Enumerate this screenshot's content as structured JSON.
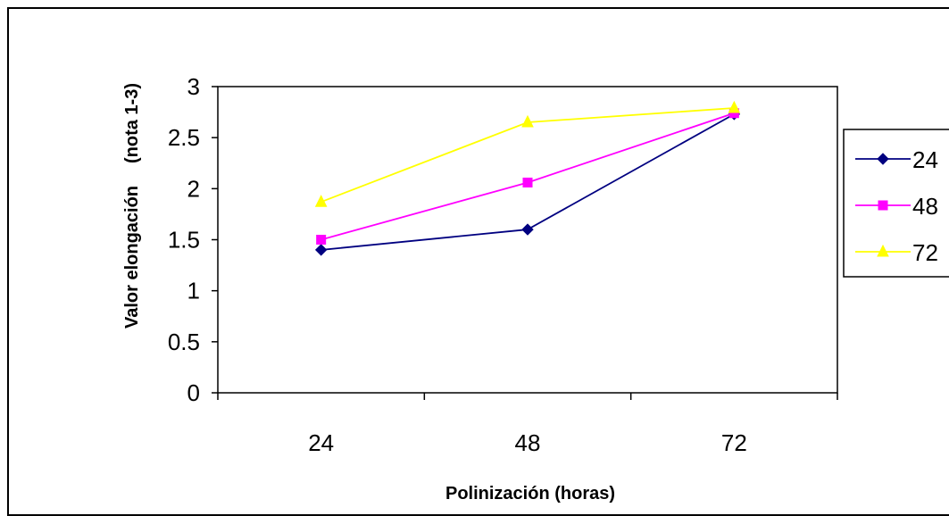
{
  "chart_data": {
    "type": "line",
    "categories": [
      "24",
      "48",
      "72"
    ],
    "series": [
      {
        "name": "24",
        "values": [
          1.4,
          1.6,
          2.73
        ],
        "color": "#000080",
        "marker": "diamond"
      },
      {
        "name": "48",
        "values": [
          1.5,
          2.06,
          2.74
        ],
        "color": "#FF00FF",
        "marker": "square"
      },
      {
        "name": "72",
        "values": [
          1.87,
          2.65,
          2.79
        ],
        "color": "#FFFF00",
        "marker": "triangle"
      }
    ],
    "title": "",
    "xlabel": "Polinización (horas)",
    "ylabel": "Valor elongación",
    "ylabel_unit": "(nota 1-3)",
    "ylim": [
      0,
      3
    ],
    "yticks": [
      "0",
      "0.5",
      "1",
      "1.5",
      "2",
      "2.5",
      "3"
    ],
    "grid": false,
    "legend": "right"
  }
}
